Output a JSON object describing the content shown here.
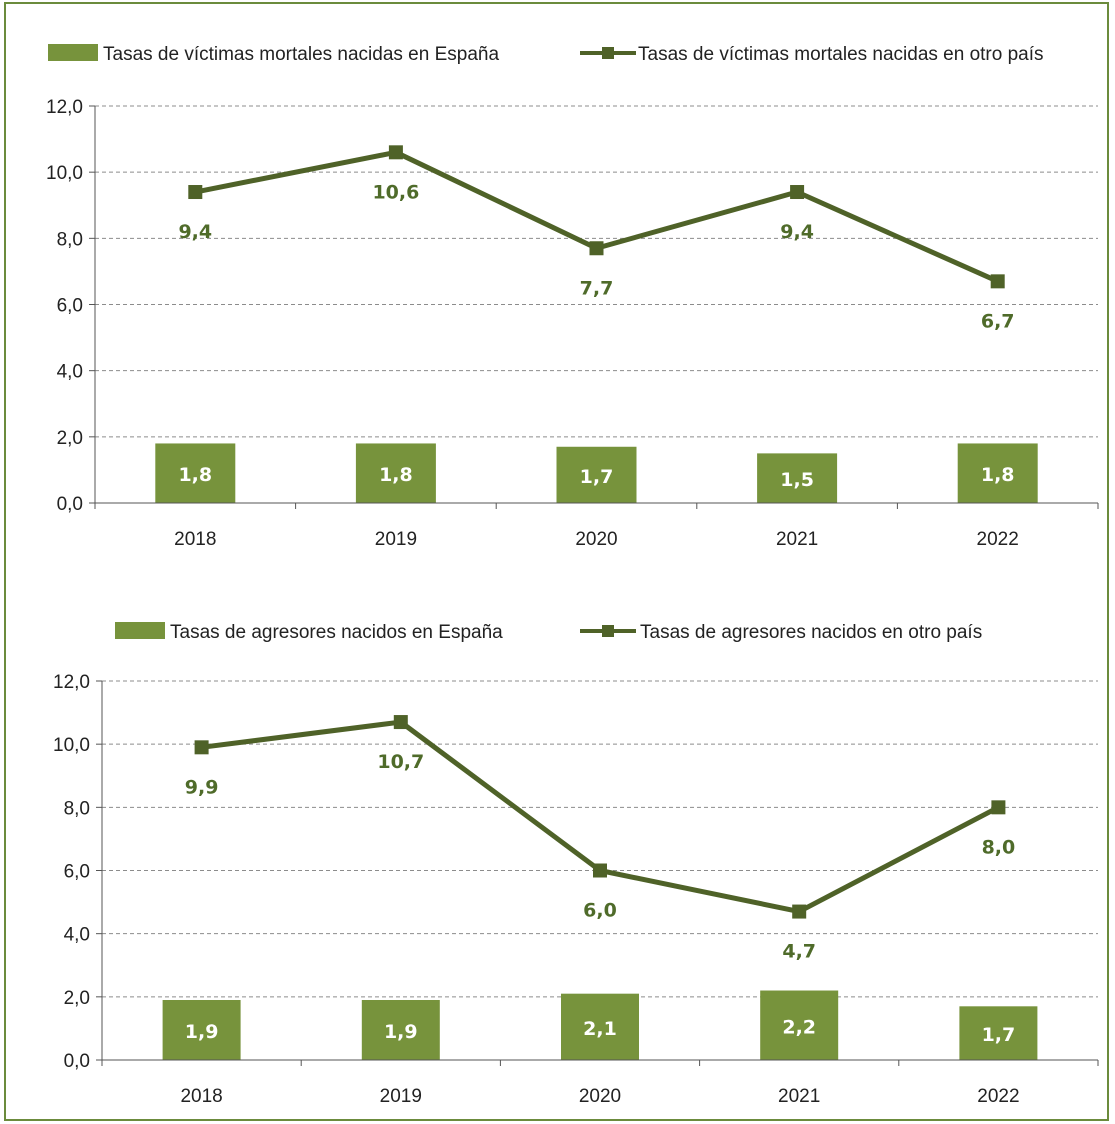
{
  "colors": {
    "bar": "#77933c",
    "line": "#4f6228",
    "marker": "#4f6228",
    "line_label": "#4f6b2a",
    "grid": "#8c8c8c",
    "border": "#6b8b3c"
  },
  "chart_data": [
    {
      "type": "bar",
      "categories": [
        "2018",
        "2019",
        "2020",
        "2021",
        "2022"
      ],
      "ylim": [
        0,
        12
      ],
      "yticks": [
        "0,0",
        "2,0",
        "4,0",
        "6,0",
        "8,0",
        "10,0",
        "12,0"
      ],
      "grid": true,
      "legend_position": "top",
      "series": [
        {
          "name": "Tasas de víctimas mortales nacidas en España",
          "kind": "bar",
          "values": [
            1.8,
            1.8,
            1.7,
            1.5,
            1.8
          ],
          "labels": [
            "1,8",
            "1,8",
            "1,7",
            "1,5",
            "1,8"
          ]
        },
        {
          "name": "Tasas de víctimas mortales nacidas en otro país",
          "kind": "line",
          "values": [
            9.4,
            10.6,
            7.7,
            9.4,
            6.7
          ],
          "labels": [
            "9,4",
            "10,6",
            "7,7",
            "9,4",
            "6,7"
          ]
        }
      ]
    },
    {
      "type": "bar",
      "categories": [
        "2018",
        "2019",
        "2020",
        "2021",
        "2022"
      ],
      "ylim": [
        0,
        12
      ],
      "yticks": [
        "0,0",
        "2,0",
        "4,0",
        "6,0",
        "8,0",
        "10,0",
        "12,0"
      ],
      "grid": true,
      "legend_position": "top",
      "series": [
        {
          "name": "Tasas de agresores nacidos en España",
          "kind": "bar",
          "values": [
            1.9,
            1.9,
            2.1,
            2.2,
            1.7
          ],
          "labels": [
            "1,9",
            "1,9",
            "2,1",
            "2,2",
            "1,7"
          ]
        },
        {
          "name": "Tasas de agresores nacidos en otro país",
          "kind": "line",
          "values": [
            9.9,
            10.7,
            6.0,
            4.7,
            8.0
          ],
          "labels": [
            "9,9",
            "10,7",
            "6,0",
            "4,7",
            "8,0"
          ]
        }
      ]
    }
  ]
}
